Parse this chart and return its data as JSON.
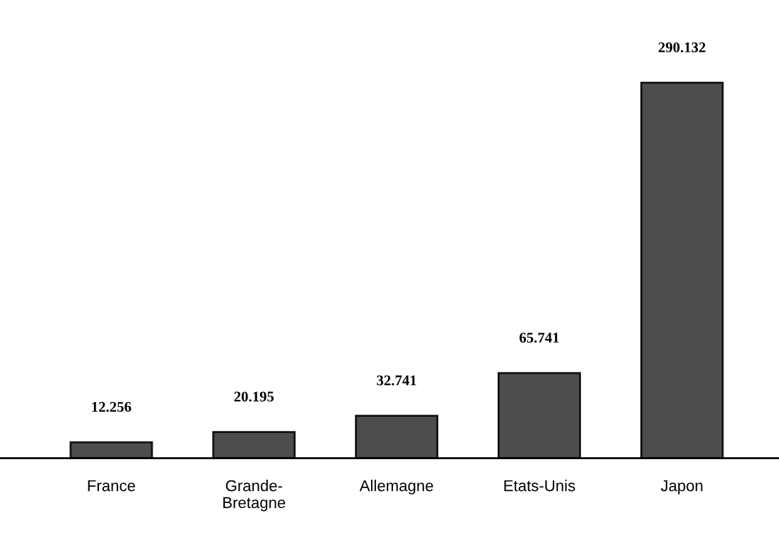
{
  "chart_data": {
    "type": "bar",
    "categories": [
      "France",
      "Grande-\nBretagne",
      "Allemagne",
      "Etats-Unis",
      "Japon"
    ],
    "values": [
      12.256,
      20.195,
      32.741,
      65.741,
      290.132
    ],
    "color": "#4d4d4d",
    "data_labels": true,
    "grid": false,
    "legend": false
  }
}
